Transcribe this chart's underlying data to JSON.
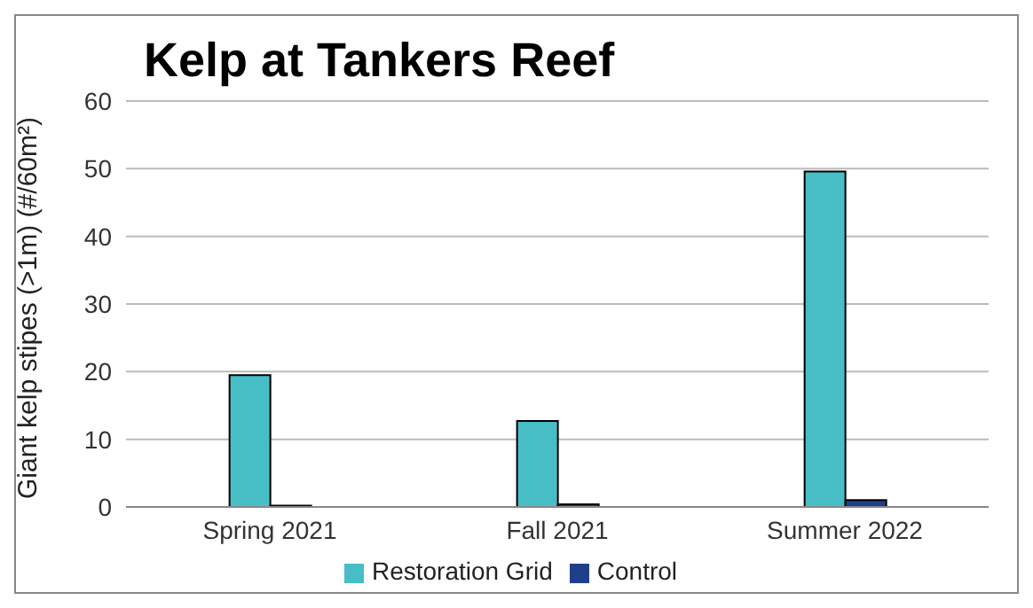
{
  "chart_data": {
    "type": "bar",
    "title": "Kelp at Tankers Reef",
    "ylabel": "Giant kelp stipes (>1m) (#/60m²)",
    "categories": [
      "Spring 2021",
      "Fall 2021",
      "Summer 2022"
    ],
    "series": [
      {
        "name": "Restoration Grid",
        "color": "#47bec6",
        "values": [
          19.5,
          12.7,
          49.6
        ]
      },
      {
        "name": "Control",
        "color": "#1f3f8a",
        "values": [
          0.2,
          0.4,
          1.0
        ]
      }
    ],
    "ylim": [
      0,
      60
    ],
    "yticks": [
      0,
      10,
      20,
      30,
      40,
      50,
      60
    ],
    "grid": "y",
    "legend": "bottom"
  }
}
